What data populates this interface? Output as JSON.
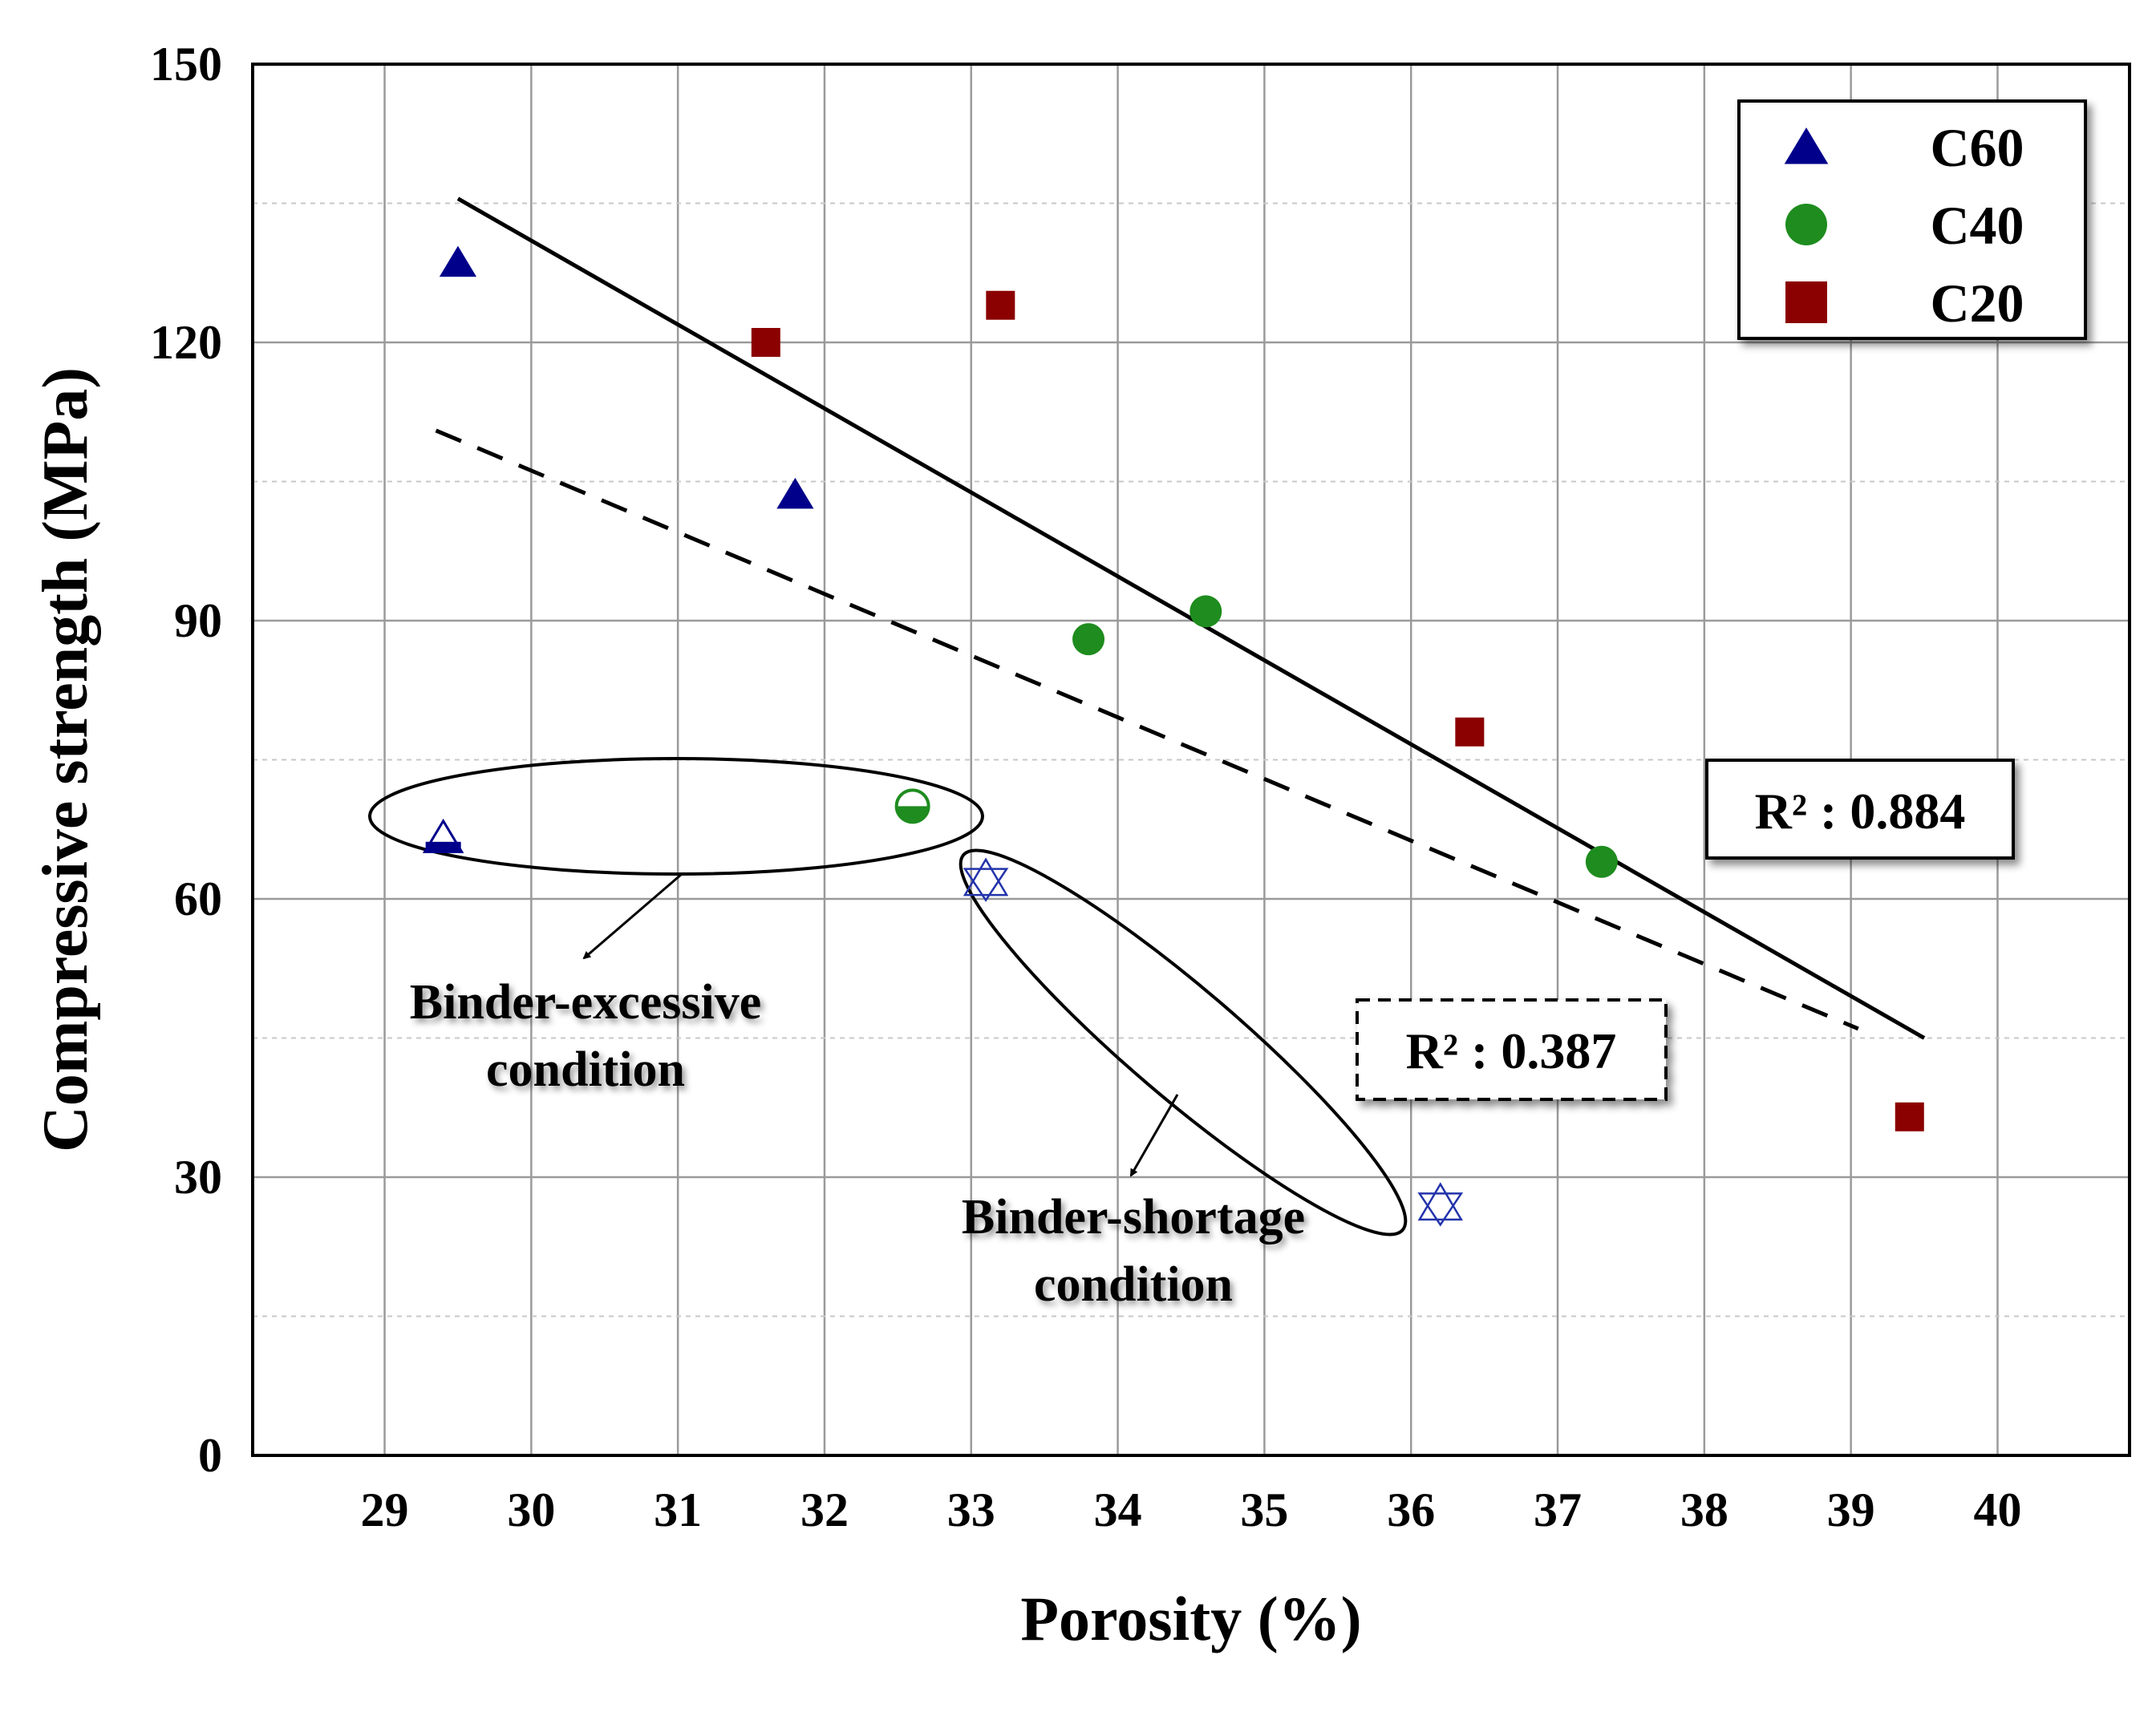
{
  "chart_data": {
    "type": "scatter",
    "title": "",
    "xlabel": "Porosity (%)",
    "ylabel": "Compressive strength (MPa)",
    "xlim": [
      28.1,
      40.9
    ],
    "ylim": [
      0,
      150
    ],
    "x_ticks": [
      29,
      30,
      31,
      32,
      33,
      34,
      35,
      36,
      37,
      38,
      39,
      40
    ],
    "y_ticks": [
      0,
      30,
      60,
      90,
      120,
      150
    ],
    "y_minor_grid": [
      15,
      45,
      75,
      105,
      135
    ],
    "grid": true,
    "legend_position": "top-right",
    "colors": {
      "C60": "#00008B",
      "C40": "#1E8C1E",
      "C20": "#8B0000",
      "outlier": "#2233AA"
    },
    "series": [
      {
        "name": "C60",
        "marker": "triangle",
        "points": [
          {
            "x": 29.5,
            "y": 128.5
          },
          {
            "x": 31.8,
            "y": 103.5
          }
        ]
      },
      {
        "name": "C40",
        "marker": "circle",
        "points": [
          {
            "x": 33.8,
            "y": 88
          },
          {
            "x": 34.6,
            "y": 91
          },
          {
            "x": 37.3,
            "y": 64
          }
        ]
      },
      {
        "name": "C20",
        "marker": "square",
        "points": [
          {
            "x": 31.6,
            "y": 120
          },
          {
            "x": 33.2,
            "y": 124
          },
          {
            "x": 36.4,
            "y": 78
          },
          {
            "x": 39.4,
            "y": 36.5
          }
        ]
      }
    ],
    "excluded_points": [
      {
        "group": "binder-excessive",
        "marker": "triangle-outline",
        "x": 29.4,
        "y": 66.5
      },
      {
        "group": "binder-excessive",
        "marker": "circle-half",
        "x": 32.6,
        "y": 70
      },
      {
        "group": "binder-shortage",
        "marker": "star-of-david",
        "x": 33.1,
        "y": 62
      },
      {
        "group": "binder-shortage",
        "marker": "star-of-david",
        "x": 36.2,
        "y": 27
      }
    ],
    "trendlines": [
      {
        "name": "fit-all-filtered",
        "style": "solid",
        "x": [
          29.5,
          39.5
        ],
        "y": [
          135.5,
          45
        ],
        "r2_label": "R² : 0.884"
      },
      {
        "name": "fit-all-points",
        "style": "dashed",
        "x": [
          29.35,
          39.05
        ],
        "y": [
          110.5,
          46
        ],
        "r2_label": "R² : 0.387"
      }
    ],
    "annotations": {
      "excessive": {
        "line1": "Binder-excessive",
        "line2": "condition"
      },
      "shortage": {
        "line1": "Binder-shortage",
        "line2": "condition"
      }
    }
  }
}
